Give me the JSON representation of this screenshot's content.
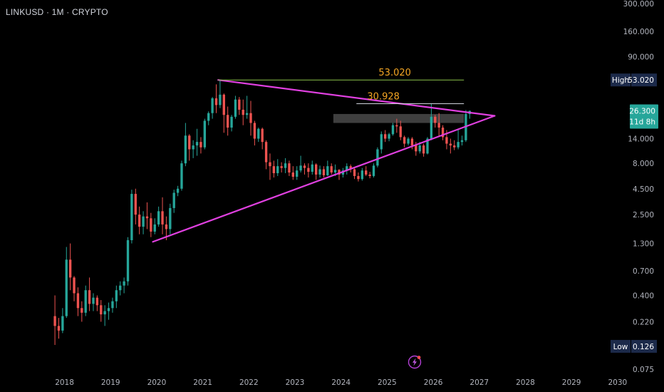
{
  "header": {
    "symbol_line": "LINKUSD · 1M · CRYPTO"
  },
  "colors": {
    "background": "#000000",
    "up_candle": "#26a69a",
    "down_candle": "#ef5350",
    "trendline": "#e040e0",
    "level_high": "#8bc34a",
    "level_mid": "#d1d4dc",
    "level_text": "#f5a623",
    "zone": "#4a4a4a",
    "tag_bg": "#1c2a4a",
    "price_tag_bg": "#26a69a"
  },
  "annotations": {
    "level_high_label": "53.020",
    "level_mid_label": "30.928"
  },
  "tags": {
    "high_label": "High",
    "high_value": "53.020",
    "low_label": "Low",
    "low_value": "0.126",
    "price_value": "26.300",
    "countdown": "11d 8h"
  },
  "icons": {
    "bottom_icon": "lightning-icon"
  },
  "chart_data": {
    "type": "candlestick",
    "title": "",
    "y_scale": "log",
    "y_ticks": [
      "300.000",
      "160.000",
      "90.000",
      "53.020",
      "26.300",
      "14.000",
      "8.000",
      "4.500",
      "2.500",
      "1.300",
      "0.700",
      "0.400",
      "0.220",
      "0.126",
      "0.075"
    ],
    "x_ticks": [
      "2018",
      "2019",
      "2020",
      "2021",
      "2022",
      "2023",
      "2024",
      "2025",
      "2026",
      "2027",
      "2028",
      "2029",
      "2030"
    ],
    "y_range": [
      0.075,
      300
    ],
    "x_range": [
      "2017-09",
      "2030-04"
    ],
    "start_month": "2017-10",
    "candles": [
      [
        0.25,
        0.4,
        0.13,
        0.2
      ],
      [
        0.2,
        0.24,
        0.15,
        0.18
      ],
      [
        0.18,
        0.3,
        0.17,
        0.25
      ],
      [
        0.25,
        1.2,
        0.24,
        0.9
      ],
      [
        0.9,
        1.3,
        0.45,
        0.6
      ],
      [
        0.6,
        0.62,
        0.35,
        0.42
      ],
      [
        0.42,
        0.48,
        0.25,
        0.3
      ],
      [
        0.3,
        0.35,
        0.22,
        0.27
      ],
      [
        0.27,
        0.5,
        0.25,
        0.45
      ],
      [
        0.45,
        0.6,
        0.28,
        0.33
      ],
      [
        0.33,
        0.42,
        0.28,
        0.38
      ],
      [
        0.38,
        0.4,
        0.28,
        0.32
      ],
      [
        0.32,
        0.36,
        0.22,
        0.26
      ],
      [
        0.26,
        0.32,
        0.2,
        0.28
      ],
      [
        0.28,
        0.34,
        0.23,
        0.3
      ],
      [
        0.3,
        0.38,
        0.27,
        0.35
      ],
      [
        0.35,
        0.5,
        0.3,
        0.45
      ],
      [
        0.45,
        0.55,
        0.4,
        0.5
      ],
      [
        0.5,
        0.6,
        0.42,
        0.55
      ],
      [
        0.55,
        1.5,
        0.5,
        1.4
      ],
      [
        1.4,
        4.4,
        1.3,
        4.0
      ],
      [
        4.0,
        4.5,
        2.0,
        2.5
      ],
      [
        2.5,
        3.0,
        1.6,
        1.9
      ],
      [
        1.9,
        2.7,
        1.6,
        2.4
      ],
      [
        2.4,
        3.3,
        1.8,
        2.3
      ],
      [
        2.3,
        2.6,
        1.5,
        1.7
      ],
      [
        1.7,
        2.3,
        1.6,
        2.0
      ],
      [
        2.0,
        3.0,
        1.9,
        2.7
      ],
      [
        2.7,
        3.7,
        1.6,
        2.0
      ],
      [
        2.0,
        2.4,
        1.4,
        1.8
      ],
      [
        1.8,
        3.2,
        1.6,
        2.9
      ],
      [
        2.9,
        4.4,
        2.6,
        4.1
      ],
      [
        4.1,
        4.8,
        3.8,
        4.5
      ],
      [
        4.5,
        8.5,
        4.3,
        8.0
      ],
      [
        8.0,
        20.0,
        7.5,
        15.0
      ],
      [
        15.0,
        15.5,
        8.5,
        11.0
      ],
      [
        11.0,
        13.5,
        9.0,
        12.0
      ],
      [
        12.0,
        17.5,
        9.5,
        13.0
      ],
      [
        13.0,
        14.5,
        10.0,
        11.5
      ],
      [
        11.5,
        22.0,
        11.0,
        21.0
      ],
      [
        21.0,
        26.0,
        19.0,
        25.0
      ],
      [
        25.0,
        36.0,
        22.0,
        35.0
      ],
      [
        35.0,
        48.0,
        25.0,
        30.0
      ],
      [
        30.0,
        53.0,
        28.0,
        38.0
      ],
      [
        38.0,
        39.0,
        16.0,
        24.0
      ],
      [
        24.0,
        29.0,
        15.0,
        18.0
      ],
      [
        18.0,
        24.0,
        16.5,
        23.0
      ],
      [
        23.0,
        37.0,
        22.0,
        34.0
      ],
      [
        34.0,
        36.0,
        24.0,
        27.0
      ],
      [
        27.0,
        34.0,
        19.0,
        24.0
      ],
      [
        24.0,
        37.0,
        22.0,
        25.0
      ],
      [
        25.0,
        33.0,
        15.0,
        20.0
      ],
      [
        20.0,
        21.0,
        12.0,
        14.0
      ],
      [
        14.0,
        18.0,
        13.0,
        17.5
      ],
      [
        17.5,
        18.0,
        11.0,
        13.0
      ],
      [
        13.0,
        13.5,
        7.0,
        8.2
      ],
      [
        8.2,
        10.0,
        5.5,
        7.5
      ],
      [
        7.5,
        8.5,
        5.8,
        6.4
      ],
      [
        6.4,
        8.8,
        6.0,
        7.5
      ],
      [
        7.5,
        8.2,
        6.5,
        7.2
      ],
      [
        7.2,
        9.0,
        6.4,
        8.0
      ],
      [
        8.0,
        8.5,
        6.0,
        6.5
      ],
      [
        6.5,
        7.5,
        5.5,
        5.9
      ],
      [
        5.9,
        7.5,
        5.5,
        6.8
      ],
      [
        6.8,
        9.5,
        6.5,
        7.6
      ],
      [
        7.6,
        8.0,
        6.2,
        7.2
      ],
      [
        7.2,
        8.0,
        5.8,
        6.6
      ],
      [
        6.6,
        8.5,
        6.2,
        7.8
      ],
      [
        7.8,
        8.0,
        5.5,
        6.2
      ],
      [
        6.2,
        7.6,
        5.8,
        7.0
      ],
      [
        7.0,
        7.5,
        5.8,
        6.1
      ],
      [
        6.1,
        8.5,
        6.0,
        7.5
      ],
      [
        7.5,
        8.0,
        6.2,
        6.5
      ],
      [
        6.5,
        7.8,
        6.0,
        6.9
      ],
      [
        6.9,
        7.0,
        5.5,
        6.2
      ],
      [
        6.2,
        7.2,
        5.8,
        6.8
      ],
      [
        6.8,
        8.0,
        6.2,
        7.5
      ],
      [
        7.5,
        7.8,
        6.5,
        7.0
      ],
      [
        7.0,
        7.3,
        5.6,
        6.0
      ],
      [
        6.0,
        6.5,
        5.3,
        5.6
      ],
      [
        5.6,
        7.2,
        5.4,
        6.8
      ],
      [
        6.8,
        7.5,
        6.0,
        6.2
      ],
      [
        6.2,
        6.6,
        5.7,
        6.0
      ],
      [
        6.0,
        8.0,
        5.8,
        7.6
      ],
      [
        7.6,
        11.5,
        7.3,
        11.0
      ],
      [
        11.0,
        16.5,
        10.0,
        15.5
      ],
      [
        15.5,
        17.0,
        13.0,
        14.0
      ],
      [
        14.0,
        16.0,
        13.2,
        15.5
      ],
      [
        15.5,
        20.0,
        15.0,
        19.0
      ],
      [
        19.0,
        22.0,
        16.0,
        18.5
      ],
      [
        18.5,
        21.0,
        13.5,
        14.5
      ],
      [
        14.5,
        15.0,
        11.5,
        12.5
      ],
      [
        12.5,
        14.5,
        12.0,
        14.0
      ],
      [
        14.0,
        14.5,
        11.0,
        12.0
      ],
      [
        12.0,
        13.0,
        9.5,
        10.5
      ],
      [
        10.5,
        13.0,
        10.0,
        12.0
      ],
      [
        12.0,
        12.5,
        9.3,
        10.0
      ],
      [
        10.0,
        14.5,
        9.8,
        14.0
      ],
      [
        14.0,
        30.9,
        13.5,
        23.0
      ],
      [
        23.0,
        24.0,
        18.0,
        20.0
      ],
      [
        20.0,
        25.0,
        15.0,
        18.0
      ],
      [
        18.0,
        19.0,
        13.5,
        14.5
      ],
      [
        14.5,
        17.0,
        11.0,
        12.5
      ],
      [
        12.5,
        14.0,
        10.0,
        12.0
      ],
      [
        12.0,
        13.5,
        10.8,
        11.5
      ],
      [
        11.5,
        17.5,
        11.0,
        13.0
      ],
      [
        13.0,
        15.0,
        12.0,
        13.5
      ],
      [
        13.5,
        26.8,
        13.0,
        24.5
      ],
      [
        24.5,
        26.5,
        22.0,
        26.3
      ]
    ],
    "levels": [
      {
        "label": "53.020",
        "value": 53.02
      },
      {
        "label": "30.928",
        "value": 30.928
      }
    ],
    "zone": {
      "from": "2023-11",
      "to": "2026-09",
      "low": 20.0,
      "high": 24.5
    },
    "triangle": {
      "upper": [
        [
          "2021-05",
          53.02
        ],
        [
          "2027-05",
          23.5
        ]
      ],
      "lower": [
        [
          "2019-12",
          1.35
        ],
        [
          "2027-05",
          23.5
        ]
      ]
    }
  }
}
